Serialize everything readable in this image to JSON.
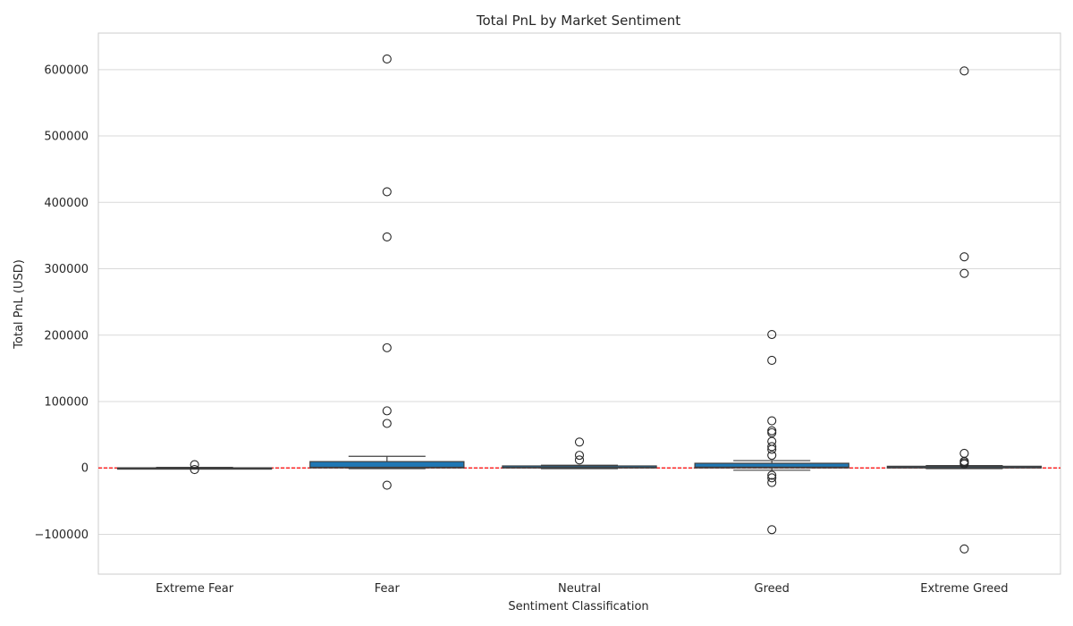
{
  "chart_data": {
    "type": "box",
    "title": "Total PnL by Market Sentiment",
    "xlabel": "Sentiment Classification",
    "ylabel": "Total PnL (USD)",
    "categories": [
      "Extreme Fear",
      "Fear",
      "Neutral",
      "Greed",
      "Extreme Greed"
    ],
    "ylim": [
      -160000,
      655000
    ],
    "yticks": [
      -100000,
      0,
      100000,
      200000,
      300000,
      400000,
      500000,
      600000
    ],
    "ytick_labels": [
      "−100000",
      "0",
      "100000",
      "200000",
      "300000",
      "400000",
      "500000",
      "600000"
    ],
    "grid": true,
    "reference_line": {
      "y": 0,
      "color": "#ff0000",
      "style": "dashed"
    },
    "box_color": "#1f77b4",
    "boxes": [
      {
        "category": "Extreme Fear",
        "whisker_low": -1000,
        "q1": -200,
        "median": 0,
        "q3": 200,
        "whisker_high": 800,
        "outliers": [
          5000,
          -2500
        ]
      },
      {
        "category": "Fear",
        "whisker_low": -1000,
        "q1": 0,
        "median": 800,
        "q3": 9500,
        "whisker_high": 17500,
        "outliers": [
          616000,
          416000,
          348000,
          181000,
          86000,
          67000,
          -26000
        ]
      },
      {
        "category": "Neutral",
        "whisker_low": -1000,
        "q1": 0,
        "median": 500,
        "q3": 3000,
        "whisker_high": 4000,
        "outliers": [
          39000,
          19000,
          12000
        ]
      },
      {
        "category": "Greed",
        "whisker_low": -3500,
        "q1": 0,
        "median": 1000,
        "q3": 7000,
        "whisker_high": 11000,
        "outliers": [
          201000,
          162000,
          71000,
          56000,
          53000,
          40000,
          32000,
          28000,
          19000,
          -11000,
          -15000,
          -22000,
          -93000
        ]
      },
      {
        "category": "Extreme Greed",
        "whisker_low": -1000,
        "q1": 0,
        "median": 500,
        "q3": 2500,
        "whisker_high": 3500,
        "outliers": [
          598000,
          318000,
          293000,
          22000,
          10000,
          8000,
          6000,
          -122000
        ]
      }
    ]
  }
}
